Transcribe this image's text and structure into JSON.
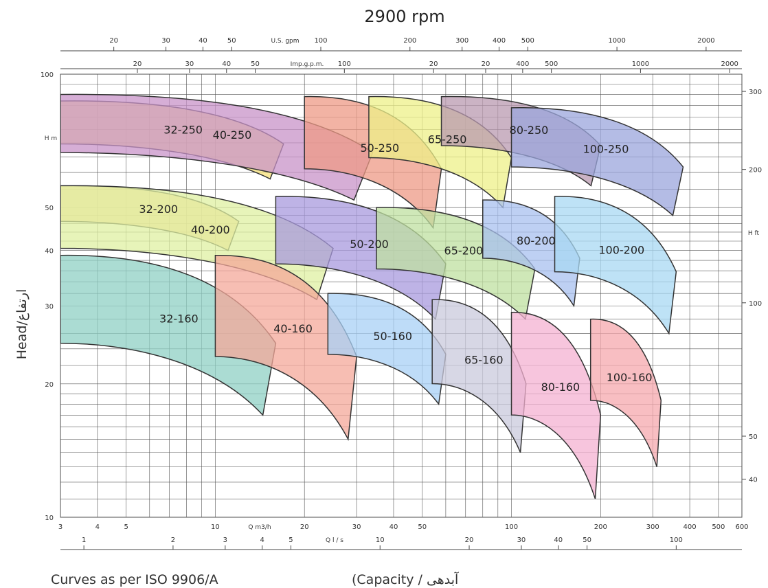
{
  "chart_data": {
    "type": "area",
    "title": "2900 rpm",
    "ylabel_left": "Head/ارتفاع",
    "y_unit_left": "H m",
    "y_unit_right": "H ft",
    "x_label_bottom": "Q m3/h",
    "x_label_bottom_secondary": "Q l / s",
    "x_label_top": "U.S. gpm",
    "x_label_top_secondary": "Imp.g.p.m.",
    "footer_left": "Curves as per ISO 9906/A",
    "footer_right": "(Capacity / آبدهی",
    "xlim": [
      3,
      600
    ],
    "ylim": [
      10,
      100
    ],
    "x_scale": "log",
    "y_scale": "log",
    "grid": true,
    "x_ticks_m3h": [
      "3",
      "4",
      "5",
      "10",
      "20",
      "30",
      "40",
      "50",
      "100",
      "200",
      "300",
      "400",
      "500",
      "600"
    ],
    "x_ticks_ls": [
      "1",
      "2",
      "3",
      "4",
      "5",
      "10",
      "20",
      "30",
      "40",
      "50",
      "100"
    ],
    "x_ticks_usgpm": [
      "20",
      "30",
      "40",
      "50",
      "100",
      "200",
      "300",
      "400",
      "500",
      "1000",
      "2000"
    ],
    "x_ticks_impgpm": [
      "20",
      "30",
      "40",
      "50",
      "100",
      "20",
      "20",
      "400",
      "500",
      "1000",
      "2000"
    ],
    "y_ticks_m": [
      "100",
      "50",
      "40",
      "30",
      "20",
      "10"
    ],
    "y_ticks_ft": [
      "300",
      "200",
      "100",
      "50",
      "40"
    ],
    "series": [
      {
        "name": "32-250",
        "color": "#f7e17a",
        "q_range": [
          3,
          17
        ],
        "head_range": [
          58,
          87
        ]
      },
      {
        "name": "40-250",
        "color": "#c893c8",
        "q_range": [
          3,
          34
        ],
        "head_range": [
          52,
          90
        ]
      },
      {
        "name": "50-250",
        "color": "#ee9a86",
        "q_range": [
          20,
          58
        ],
        "head_range": [
          45,
          89
        ]
      },
      {
        "name": "65-250",
        "color": "#eef088",
        "q_range": [
          33,
          100
        ],
        "head_range": [
          50,
          89
        ]
      },
      {
        "name": "80-250",
        "color": "#b99ab0",
        "q_range": [
          58,
          200
        ],
        "head_range": [
          56,
          89
        ]
      },
      {
        "name": "100-250",
        "color": "#9ba6dc",
        "q_range": [
          100,
          380
        ],
        "head_range": [
          48,
          84
        ]
      },
      {
        "name": "32-200",
        "color": "#f7cc8c",
        "q_range": [
          3,
          12
        ],
        "head_range": [
          40,
          56
        ]
      },
      {
        "name": "40-200",
        "color": "#dff0a1",
        "q_range": [
          3,
          25
        ],
        "head_range": [
          31,
          56
        ]
      },
      {
        "name": "50-200",
        "color": "#a899de",
        "q_range": [
          16,
          60
        ],
        "head_range": [
          28,
          53
        ]
      },
      {
        "name": "65-200",
        "color": "#bfe0a0",
        "q_range": [
          35,
          120
        ],
        "head_range": [
          28,
          50
        ]
      },
      {
        "name": "80-200",
        "color": "#a8c0ef",
        "q_range": [
          80,
          170
        ],
        "head_range": [
          30,
          52
        ]
      },
      {
        "name": "100-200",
        "color": "#a8d8f3",
        "q_range": [
          140,
          360
        ],
        "head_range": [
          26,
          53
        ]
      },
      {
        "name": "32-160",
        "color": "#8fd0c4",
        "q_range": [
          3,
          16
        ],
        "head_range": [
          17,
          39
        ]
      },
      {
        "name": "40-160",
        "color": "#f4a89a",
        "q_range": [
          10,
          30
        ],
        "head_range": [
          15,
          39
        ]
      },
      {
        "name": "50-160",
        "color": "#a8d0f5",
        "q_range": [
          24,
          60
        ],
        "head_range": [
          18,
          32
        ]
      },
      {
        "name": "65-160",
        "color": "#c9c9dc",
        "q_range": [
          54,
          112
        ],
        "head_range": [
          14,
          31
        ]
      },
      {
        "name": "80-160",
        "color": "#f4b1d2",
        "q_range": [
          100,
          200
        ],
        "head_range": [
          11,
          29
        ]
      },
      {
        "name": "100-160",
        "color": "#f6a8ae",
        "q_range": [
          185,
          320
        ],
        "head_range": [
          13,
          28
        ]
      }
    ]
  }
}
